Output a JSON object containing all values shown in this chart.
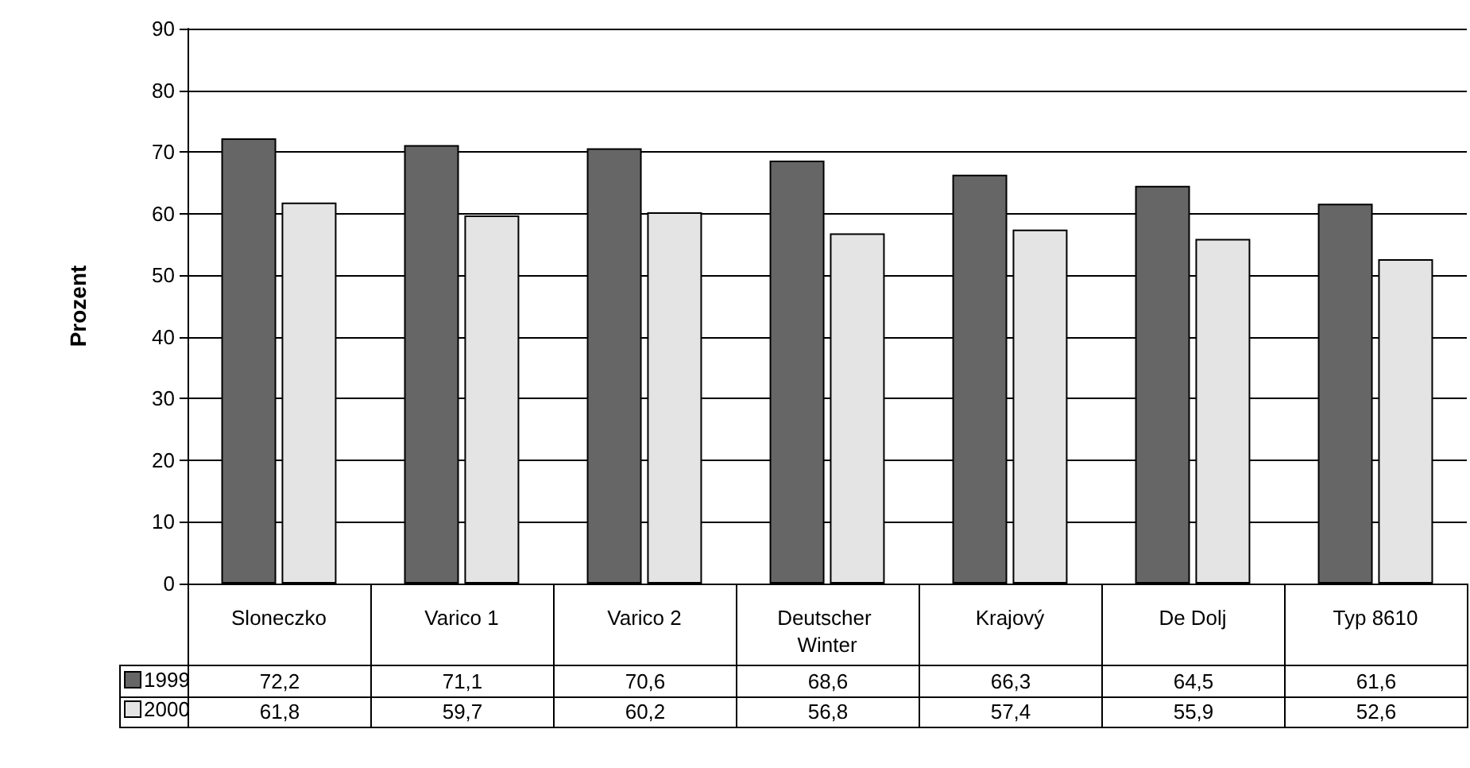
{
  "chart_data": {
    "type": "bar",
    "ylabel": "Prozent",
    "categories": [
      "Sloneczko",
      "Varico 1",
      "Varico 2",
      "Deutscher Winter",
      "Krajový",
      "De Dolj",
      "Typ 8610"
    ],
    "series": [
      {
        "name": "1999",
        "color": "#666666",
        "values": [
          72.2,
          71.1,
          70.6,
          68.6,
          66.3,
          64.5,
          61.6
        ],
        "value_labels": [
          "72,2",
          "71,1",
          "70,6",
          "68,6",
          "66,3",
          "64,5",
          "61,6"
        ]
      },
      {
        "name": "2000",
        "color": "#e4e4e4",
        "values": [
          61.8,
          59.7,
          60.2,
          56.8,
          57.4,
          55.9,
          52.6
        ],
        "value_labels": [
          "61,8",
          "59,7",
          "60,2",
          "56,8",
          "57,4",
          "55,9",
          "52,6"
        ]
      }
    ],
    "ylim": [
      0,
      90
    ],
    "yticks": [
      0,
      10,
      20,
      30,
      40,
      50,
      60,
      70,
      80,
      90
    ],
    "grid": "y",
    "legend": "bottom left"
  }
}
